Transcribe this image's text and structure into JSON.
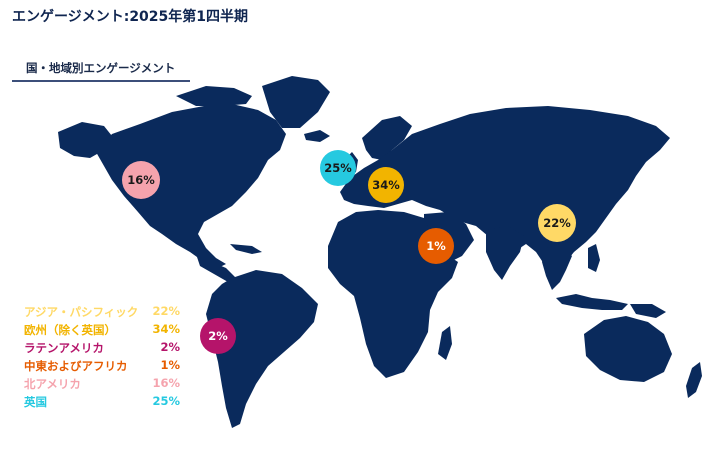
{
  "header": {
    "title": "エンゲージメント:2025年第1四半期"
  },
  "section": {
    "label": "国・地域別エンゲージメント"
  },
  "regions": [
    {
      "name": "アジア・パシフィック",
      "value": "22%",
      "color": "#ffd966",
      "text_color": "#1a1a1a"
    },
    {
      "name": "欧州（除く英国）",
      "value": "34%",
      "color": "#f2b400",
      "text_color": "#1a1a1a"
    },
    {
      "name": "ラテンアメリカ",
      "value": "2%",
      "color": "#b5146a",
      "text_color": "#ffffff"
    },
    {
      "name": "中東およびアフリカ",
      "value": "1%",
      "color": "#e65c00",
      "text_color": "#ffffff"
    },
    {
      "name": "北アメリカ",
      "value": "16%",
      "color": "#f5a3ad",
      "text_color": "#1a1a1a"
    },
    {
      "name": "英国",
      "value": "25%",
      "color": "#26c9e0",
      "text_color": "#1a1a1a"
    }
  ],
  "colors": {
    "land": "#0a2a5c",
    "title": "#0f2550"
  }
}
